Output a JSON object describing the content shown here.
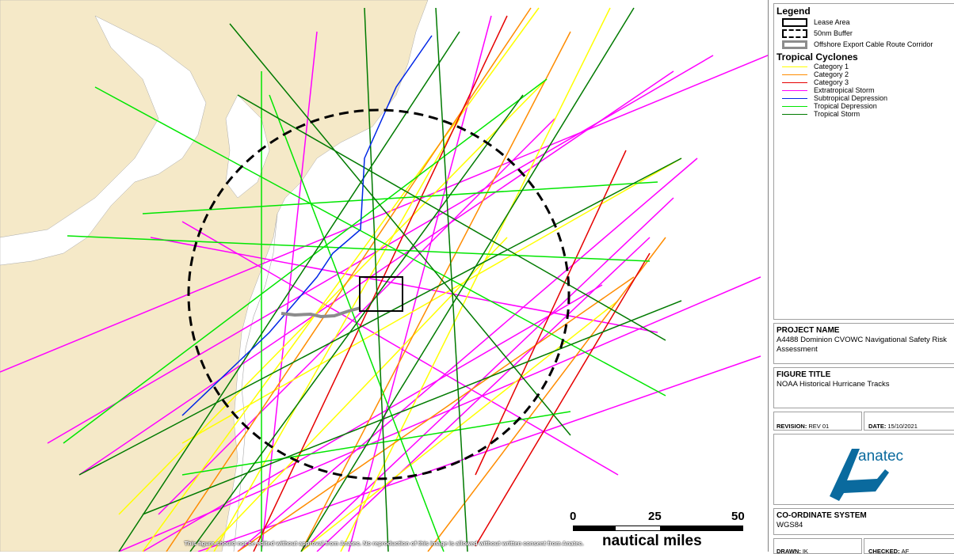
{
  "legend": {
    "title": "Legend",
    "items": [
      {
        "label": "Lease Area",
        "style": "solid-box"
      },
      {
        "label": "50nm Buffer",
        "style": "dashed-box"
      },
      {
        "label": "Offshore Export Cable Route Corridor",
        "style": "grey-box"
      }
    ],
    "cyclones_title": "Tropical Cyclones",
    "cyclones": [
      {
        "label": "Category 1",
        "color": "#ffff00"
      },
      {
        "label": "Category 2",
        "color": "#ff8c00"
      },
      {
        "label": "Category 3",
        "color": "#e60000"
      },
      {
        "label": "Extratropical Storm",
        "color": "#ff00ff"
      },
      {
        "label": "Subtropical Depression",
        "color": "#0026e6"
      },
      {
        "label": "Tropical Depression",
        "color": "#00e600"
      },
      {
        "label": "Tropical Storm",
        "color": "#007a00"
      }
    ]
  },
  "project": {
    "label": "PROJECT NAME",
    "value": "A4488 Dominion CVOWC Navigational Safety Risk Assessment"
  },
  "figure": {
    "label": "FIGURE TITLE",
    "value": "NOAA Historical Hurricane Tracks"
  },
  "revision": {
    "label": "REVISION:",
    "value": "REV 01"
  },
  "date": {
    "label": "DATE:",
    "value": "15/10/2021"
  },
  "logo": {
    "text": "anatec",
    "color": "#0a6a9e"
  },
  "coordinate_system": {
    "label": "CO-ORDINATE SYSTEM",
    "value": "WGS84"
  },
  "drawn": {
    "label": "DRAWN:",
    "value": "IK"
  },
  "checked": {
    "label": "CHECKED:",
    "value": "AF"
  },
  "scale": {
    "ticks": [
      "0",
      "25",
      "50"
    ],
    "units": "nautical miles"
  },
  "disclaimer": "This figure should not be edited without approval from Anatec. No reproduction of this image is allowed without written consent from Anatec.",
  "map_colors": {
    "land": "#f5e9c8",
    "sea": "#ffffff",
    "cable": "#8c8c8c",
    "buffer": "#000000"
  }
}
